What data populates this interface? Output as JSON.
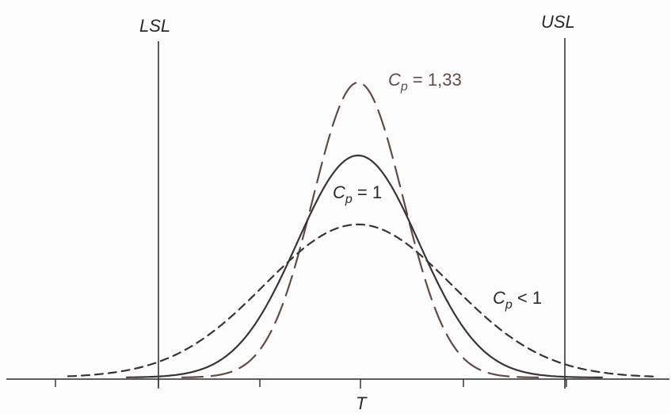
{
  "diagram": {
    "limits": {
      "lsl_label": "LSL",
      "usl_label": "USL",
      "target_label": "T"
    },
    "curves": [
      {
        "id": "cp_133",
        "symbol": "C",
        "subscript": "p",
        "relation": " = 1,33",
        "style": "long-dash",
        "color": "#6a5550"
      },
      {
        "id": "cp_1",
        "symbol": "C",
        "subscript": "p",
        "relation": " = 1",
        "style": "solid",
        "color": "#3a3434"
      },
      {
        "id": "cp_lt1",
        "symbol": "C",
        "subscript": "p",
        "relation": " < 1",
        "style": "short-dash",
        "color": "#3a3434"
      }
    ]
  }
}
